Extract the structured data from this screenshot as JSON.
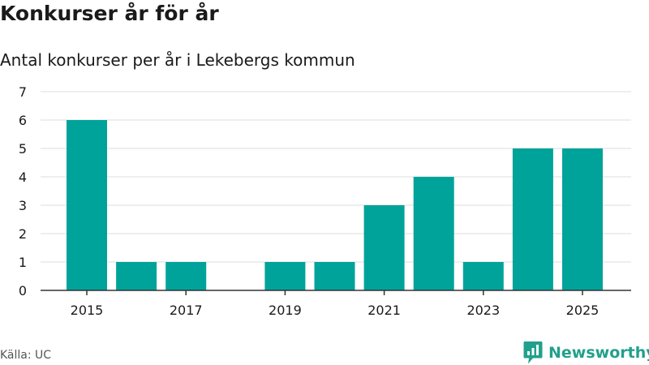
{
  "header": {
    "title": "Konkurser år för år",
    "subtitle": "Antal konkurser per år i Lekebergs kommun"
  },
  "footer": {
    "source": "Källa: UC",
    "brand": "Newsworthy"
  },
  "colors": {
    "bar": "#00a39a",
    "grid": "#dddddd",
    "axis": "#333333",
    "brand": "#22a08c"
  },
  "chart_data": {
    "type": "bar",
    "title": "Konkurser år för år",
    "subtitle": "Antal konkurser per år i Lekebergs kommun",
    "xlabel": "",
    "ylabel": "",
    "categories": [
      2015,
      2016,
      2017,
      2018,
      2019,
      2020,
      2021,
      2022,
      2023,
      2024,
      2025
    ],
    "values": [
      6,
      1,
      1,
      0,
      1,
      1,
      3,
      4,
      1,
      5,
      5
    ],
    "ylim": [
      0,
      7
    ],
    "yticks": [
      0,
      1,
      2,
      3,
      4,
      5,
      6,
      7
    ],
    "xtick_labels": [
      "2015",
      "2017",
      "2019",
      "2021",
      "2023",
      "2025"
    ],
    "grid": true,
    "legend": "none"
  }
}
